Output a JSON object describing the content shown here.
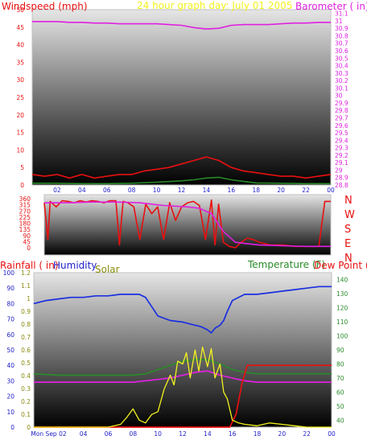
{
  "header": {
    "left_title": "Windspeed (mph)",
    "center_title": "24 hour graph day:  July 01 2005",
    "right_title": "Barometer ( in)"
  },
  "colors": {
    "red": "#e81010",
    "magenta": "#e020e0",
    "blue": "#1a2fe0",
    "yellow": "#f2f21e",
    "green": "#2a8a2a",
    "olive": "#8a8a10",
    "axis_blue": "#2020c8",
    "bg_top": "#e6e6e6",
    "bg_bottom": "#000000"
  },
  "chart_data": [
    {
      "id": "wind_baro",
      "type": "line",
      "title": "",
      "x_ticks": [
        "02",
        "04",
        "06",
        "08",
        "10",
        "12",
        "14",
        "16",
        "18",
        "20",
        "22",
        "00"
      ],
      "xlim": [
        0,
        24
      ],
      "left_axis": {
        "label": "Windspeed (mph)",
        "ticks": [
          "0",
          "5",
          "10",
          "15",
          "20",
          "25",
          "30",
          "35",
          "40",
          "45",
          "50"
        ],
        "ylim": [
          0,
          50
        ]
      },
      "right_axis": {
        "label": "Barometer ( in)",
        "ticks": [
          "28.8",
          "28.9",
          "29",
          "29.1",
          "29.2",
          "29.3",
          "29.4",
          "29.5",
          "29.6",
          "29.7",
          "29.8",
          "29.9",
          "30",
          "30.1",
          "30.2",
          "30.3",
          "30.4",
          "30.5",
          "30.6",
          "30.7",
          "30.8",
          "30.9",
          "31",
          "31.1"
        ],
        "ylim": [
          28.8,
          31.15
        ]
      },
      "series": [
        {
          "name": "Barometer",
          "color": "#e020e0",
          "axis": "right",
          "x": [
            0,
            1,
            2,
            3,
            4,
            5,
            6,
            7,
            8,
            9,
            10,
            11,
            12,
            13,
            14,
            15,
            16,
            17,
            18,
            19,
            20,
            21,
            22,
            23,
            24
          ],
          "y": [
            30.99,
            30.99,
            30.99,
            30.98,
            30.98,
            30.97,
            30.97,
            30.96,
            30.96,
            30.96,
            30.96,
            30.95,
            30.94,
            30.91,
            30.89,
            30.9,
            30.94,
            30.95,
            30.95,
            30.95,
            30.96,
            30.97,
            30.97,
            30.98,
            30.98
          ]
        },
        {
          "name": "Wind gust",
          "color": "#e81010",
          "axis": "left",
          "x": [
            0,
            1,
            2,
            3,
            4,
            5,
            6,
            7,
            8,
            9,
            10,
            11,
            12,
            13,
            14,
            15,
            16,
            17,
            18,
            19,
            20,
            21,
            22,
            23,
            24
          ],
          "y": [
            3,
            2.5,
            3,
            2,
            3,
            2,
            2.5,
            3,
            3,
            4,
            4.5,
            5,
            6,
            7,
            8,
            7,
            5,
            4,
            3.5,
            3,
            2.5,
            2.5,
            2,
            2.5,
            3
          ]
        },
        {
          "name": "Wind average",
          "color": "#2a8a2a",
          "axis": "left",
          "x": [
            0,
            2,
            4,
            6,
            8,
            10,
            12,
            13,
            14,
            15,
            16,
            17,
            18,
            20,
            22,
            24
          ],
          "y": [
            0.5,
            0.5,
            0.4,
            0.4,
            0.5,
            0.8,
            1.2,
            1.5,
            2,
            2.2,
            1.5,
            1,
            0.6,
            0.5,
            0.4,
            0.4
          ]
        }
      ]
    },
    {
      "id": "direction",
      "type": "line",
      "title": "",
      "left_axis": {
        "ticks": [
          "0",
          "45",
          "90",
          "135",
          "180",
          "225",
          "270",
          "315",
          "360"
        ],
        "ylim": [
          0,
          360
        ]
      },
      "right_axis": {
        "ticks": [
          "N",
          "W",
          "S",
          "E",
          "N"
        ]
      },
      "xlim": [
        0,
        24
      ],
      "series": [
        {
          "name": "Wind direction",
          "color": "#e81010",
          "x": [
            0,
            0.3,
            0.5,
            1,
            1.5,
            2,
            2.5,
            3,
            3.5,
            4,
            4.5,
            5,
            5.5,
            6,
            6.3,
            6.6,
            7,
            7.5,
            8,
            8.5,
            9,
            9.5,
            10,
            10.5,
            11,
            11.5,
            12,
            12.5,
            13,
            13.5,
            14,
            14.3,
            14.6,
            15,
            15.5,
            16,
            16.5,
            17,
            17.5,
            18,
            19,
            20,
            21,
            22,
            23,
            23.5,
            24
          ],
          "y": [
            330,
            60,
            340,
            300,
            345,
            340,
            330,
            345,
            335,
            345,
            340,
            330,
            345,
            345,
            20,
            340,
            330,
            300,
            60,
            320,
            250,
            300,
            60,
            330,
            200,
            300,
            330,
            340,
            310,
            60,
            350,
            20,
            320,
            40,
            10,
            0,
            40,
            70,
            60,
            40,
            20,
            20,
            10,
            10,
            10,
            340,
            340
          ]
        },
        {
          "name": "Direction average",
          "color": "#e020e0",
          "x": [
            0,
            2,
            4,
            6,
            8,
            10,
            12,
            13,
            14,
            15,
            16,
            17,
            18,
            19,
            20,
            21,
            22,
            23,
            24
          ],
          "y": [
            330,
            330,
            335,
            335,
            330,
            310,
            300,
            290,
            250,
            120,
            40,
            30,
            20,
            18,
            15,
            12,
            10,
            10,
            10
          ]
        }
      ]
    },
    {
      "id": "rain_hum_temp",
      "type": "line",
      "title": "",
      "x_ticks": [
        "Mon Sep 02",
        "04",
        "06",
        "08",
        "10",
        "12",
        "14",
        "16",
        "18",
        "20",
        "22",
        "00"
      ],
      "xlim": [
        0,
        24
      ],
      "axes": {
        "humidity": {
          "label": "Humidity",
          "ticks": [
            "0",
            "10",
            "20",
            "30",
            "40",
            "50",
            "60",
            "70",
            "80",
            "90",
            "100"
          ],
          "ylim": [
            0,
            100
          ]
        },
        "rainfall": {
          "label": "Rainfall ( in)",
          "ticks": [
            "0",
            "0.1",
            "0.2",
            "0.3",
            "0.4",
            "0.5",
            "0.6",
            "0.7",
            "0.8",
            "0.9",
            "1",
            "1.1",
            "1.2"
          ],
          "ylim": [
            0,
            1.2
          ]
        },
        "solar": {
          "label": "Solar"
        },
        "temperature": {
          "label": "Temperature (F)",
          "ticks": [
            "40",
            "50",
            "60",
            "70",
            "80",
            "90",
            "100",
            "110",
            "120",
            "130",
            "140"
          ],
          "ylim": [
            35,
            145
          ]
        },
        "dewpoint": {
          "label": "Dew Point ("
        }
      },
      "series": [
        {
          "name": "Humidity",
          "color": "#1a2fe0",
          "axis": "humidity",
          "x": [
            0,
            1,
            2,
            3,
            4,
            5,
            6,
            7,
            8,
            8.5,
            9,
            9.5,
            10,
            11,
            12,
            13,
            13.5,
            14,
            14.3,
            14.6,
            15,
            15.3,
            15.6,
            16,
            17,
            18,
            19,
            20,
            21,
            22,
            23,
            24
          ],
          "y": [
            80,
            82,
            83,
            84,
            84,
            85,
            85,
            86,
            86,
            86,
            84,
            78,
            72,
            69,
            68,
            66,
            65,
            63,
            61,
            64,
            66,
            69,
            75,
            82,
            86,
            86,
            87,
            88,
            89,
            90,
            91,
            91
          ]
        },
        {
          "name": "Temperature",
          "color": "#e020e0",
          "axis": "temperature",
          "x": [
            0,
            2,
            4,
            6,
            8,
            9,
            10,
            11,
            12,
            13,
            14,
            15,
            16,
            17,
            18,
            20,
            22,
            24
          ],
          "y": [
            67,
            67,
            67,
            67,
            67,
            68,
            69,
            70,
            72,
            74,
            75,
            72,
            70,
            68,
            67,
            67,
            67,
            67
          ]
        },
        {
          "name": "Dew Point",
          "color": "#2a8a2a",
          "axis": "temperature",
          "x": [
            0,
            2,
            4,
            6,
            8,
            9,
            10,
            11,
            12,
            13,
            14,
            15,
            16,
            17,
            18,
            20,
            22,
            24
          ],
          "y": [
            73,
            72,
            72,
            72,
            72,
            73,
            76,
            79,
            82,
            83,
            83,
            80,
            76,
            74,
            73,
            73,
            73,
            73
          ]
        },
        {
          "name": "Rainfall",
          "color": "#e81010",
          "axis": "rainfall",
          "x": [
            0,
            15.8,
            16.3,
            16.8,
            17.2,
            24
          ],
          "y": [
            0,
            0,
            0.1,
            0.35,
            0.48,
            0.48
          ]
        },
        {
          "name": "Solar",
          "color": "#f2f21e",
          "axis": "temperature",
          "x": [
            0,
            6,
            7,
            7.5,
            8,
            8.5,
            9,
            9.5,
            10,
            10.5,
            11,
            11.3,
            11.6,
            12,
            12.3,
            12.6,
            13,
            13.3,
            13.6,
            14,
            14.3,
            14.6,
            15,
            15.3,
            15.6,
            16,
            16.5,
            17,
            18,
            19,
            20,
            21,
            22,
            24
          ],
          "y": [
            35,
            35,
            37,
            42,
            48,
            40,
            38,
            44,
            46,
            62,
            72,
            65,
            82,
            80,
            88,
            70,
            90,
            75,
            92,
            78,
            91,
            70,
            80,
            60,
            55,
            40,
            38,
            37,
            36,
            38,
            37,
            36,
            35,
            35
          ]
        }
      ]
    }
  ]
}
